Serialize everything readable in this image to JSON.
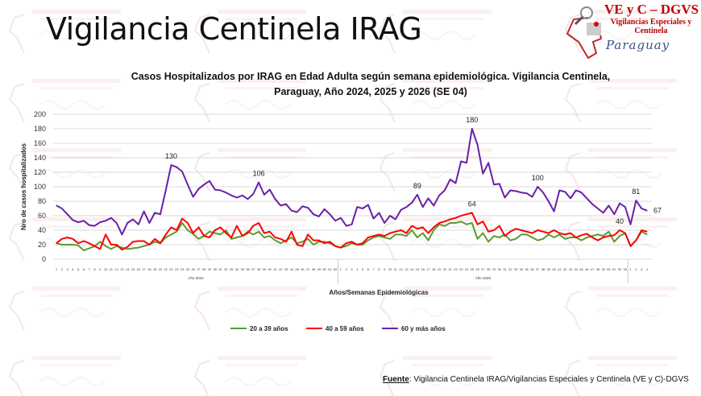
{
  "header": {
    "title": "Vigilancia Centinela IRAG"
  },
  "logo": {
    "line1": "VE y C – DGVS",
    "line2": "Vigilancias Especiales y Centinela",
    "line3": "Paraguay"
  },
  "watermark": "VE y C – DGVS",
  "footer": {
    "label": "Fuente",
    "text": ": Vigilancia  Centinela IRAG/Vigilancias Especiales y Centinela (VE y C)-DGVS"
  },
  "colors": {
    "green": "#5b9a2e",
    "red": "#ff0000",
    "purple": "#6a1fa8"
  },
  "chart_data": {
    "type": "line",
    "title": "Casos Hospitalizados por IRAG en Edad Adulta según semana epidemiológica. Vigilancia Centinela, Paraguay, Año 2024, 2025 y 2026 (SE 04)",
    "title_lines": [
      "Casos Hospitalizados por IRAG en Edad Adulta según semana epidemiológica. Vigilancia Centinela,",
      "Paraguay, Año 2024, 2025 y 2026 (SE 04)"
    ],
    "xlabel": "Años/Semanas Epidemiológicas",
    "ylabel": "Nro de casos hospitalizados",
    "ylim": [
      0,
      200
    ],
    "yticks": [
      0,
      20,
      40,
      60,
      80,
      100,
      120,
      140,
      160,
      180,
      200
    ],
    "grid": true,
    "legend_position": "bottom",
    "years": [
      {
        "label": "Año 2024",
        "weeks": 52
      },
      {
        "label": "Año 2025",
        "weeks": 53
      },
      {
        "label": "",
        "weeks": 4
      }
    ],
    "series": [
      {
        "name": "20 a 39 años",
        "color": "#5b9a2e",
        "values": [
          22,
          20,
          20,
          20,
          19,
          12,
          15,
          18,
          24,
          18,
          14,
          18,
          16,
          14,
          15,
          16,
          18,
          20,
          24,
          22,
          30,
          34,
          38,
          50,
          40,
          35,
          28,
          32,
          38,
          36,
          34,
          40,
          28,
          30,
          32,
          38,
          34,
          38,
          30,
          32,
          26,
          22,
          26,
          30,
          22,
          24,
          28,
          20,
          24,
          24,
          22,
          18,
          16,
          18,
          22,
          20,
          20,
          26,
          30,
          32,
          30,
          28,
          34,
          34,
          32,
          40,
          30,
          36,
          26,
          40,
          48,
          46,
          50,
          50,
          52,
          48,
          50,
          28,
          36,
          24,
          32,
          30,
          34,
          26,
          28,
          34,
          34,
          30,
          26,
          28,
          34,
          30,
          34,
          28,
          30,
          30,
          26,
          30,
          32,
          34,
          32,
          38,
          24,
          32,
          36,
          18,
          26,
          38,
          34
        ]
      },
      {
        "name": "40 a 59 años",
        "color": "#ff0000",
        "values": [
          22,
          28,
          30,
          28,
          22,
          25,
          22,
          18,
          14,
          34,
          20,
          20,
          13,
          17,
          24,
          25,
          25,
          20,
          28,
          22,
          34,
          44,
          40,
          56,
          50,
          36,
          44,
          32,
          30,
          40,
          44,
          36,
          30,
          46,
          32,
          36,
          46,
          50,
          36,
          38,
          30,
          28,
          24,
          38,
          20,
          18,
          34,
          26,
          26,
          22,
          24,
          18,
          16,
          22,
          24,
          20,
          22,
          30,
          32,
          34,
          32,
          36,
          38,
          40,
          36,
          46,
          42,
          44,
          36,
          44,
          50,
          52,
          55,
          57,
          60,
          62,
          64,
          48,
          52,
          38,
          40,
          46,
          32,
          38,
          42,
          40,
          38,
          36,
          40,
          38,
          36,
          40,
          36,
          34,
          36,
          30,
          33,
          35,
          30,
          26,
          30,
          32,
          33,
          40,
          36,
          18,
          26,
          40,
          38
        ]
      },
      {
        "name": "60 y más años",
        "color": "#6a1fa8",
        "values": [
          74,
          70,
          62,
          54,
          51,
          53,
          47,
          46,
          51,
          53,
          57,
          50,
          34,
          50,
          55,
          48,
          66,
          50,
          64,
          62,
          95,
          130,
          127,
          121,
          103,
          86,
          97,
          103,
          108,
          96,
          95,
          92,
          88,
          85,
          88,
          83,
          90,
          106,
          89,
          96,
          83,
          74,
          76,
          67,
          65,
          73,
          71,
          62,
          59,
          69,
          62,
          53,
          57,
          46,
          48,
          72,
          70,
          75,
          56,
          64,
          50,
          60,
          55,
          68,
          72,
          78,
          89,
          72,
          84,
          74,
          88,
          95,
          110,
          105,
          135,
          133,
          180,
          158,
          118,
          133,
          103,
          104,
          85,
          95,
          94,
          92,
          91,
          86,
          100,
          92,
          80,
          66,
          95,
          93,
          84,
          95,
          92,
          84,
          76,
          70,
          64,
          74,
          62,
          77,
          72,
          48,
          81,
          70,
          67
        ]
      }
    ],
    "annotations": [
      {
        "series": 2,
        "index": 21,
        "text": "130"
      },
      {
        "series": 2,
        "index": 37,
        "text": "106"
      },
      {
        "series": 2,
        "index": 66,
        "text": "89"
      },
      {
        "series": 2,
        "index": 76,
        "text": "180"
      },
      {
        "series": 2,
        "index": 88,
        "text": "100"
      },
      {
        "series": 2,
        "index": 106,
        "text": "81"
      },
      {
        "series": 2,
        "index": 108,
        "text": "67"
      },
      {
        "series": 1,
        "index": 76,
        "text": "64"
      },
      {
        "series": 1,
        "index": 103,
        "text": "40"
      }
    ]
  }
}
